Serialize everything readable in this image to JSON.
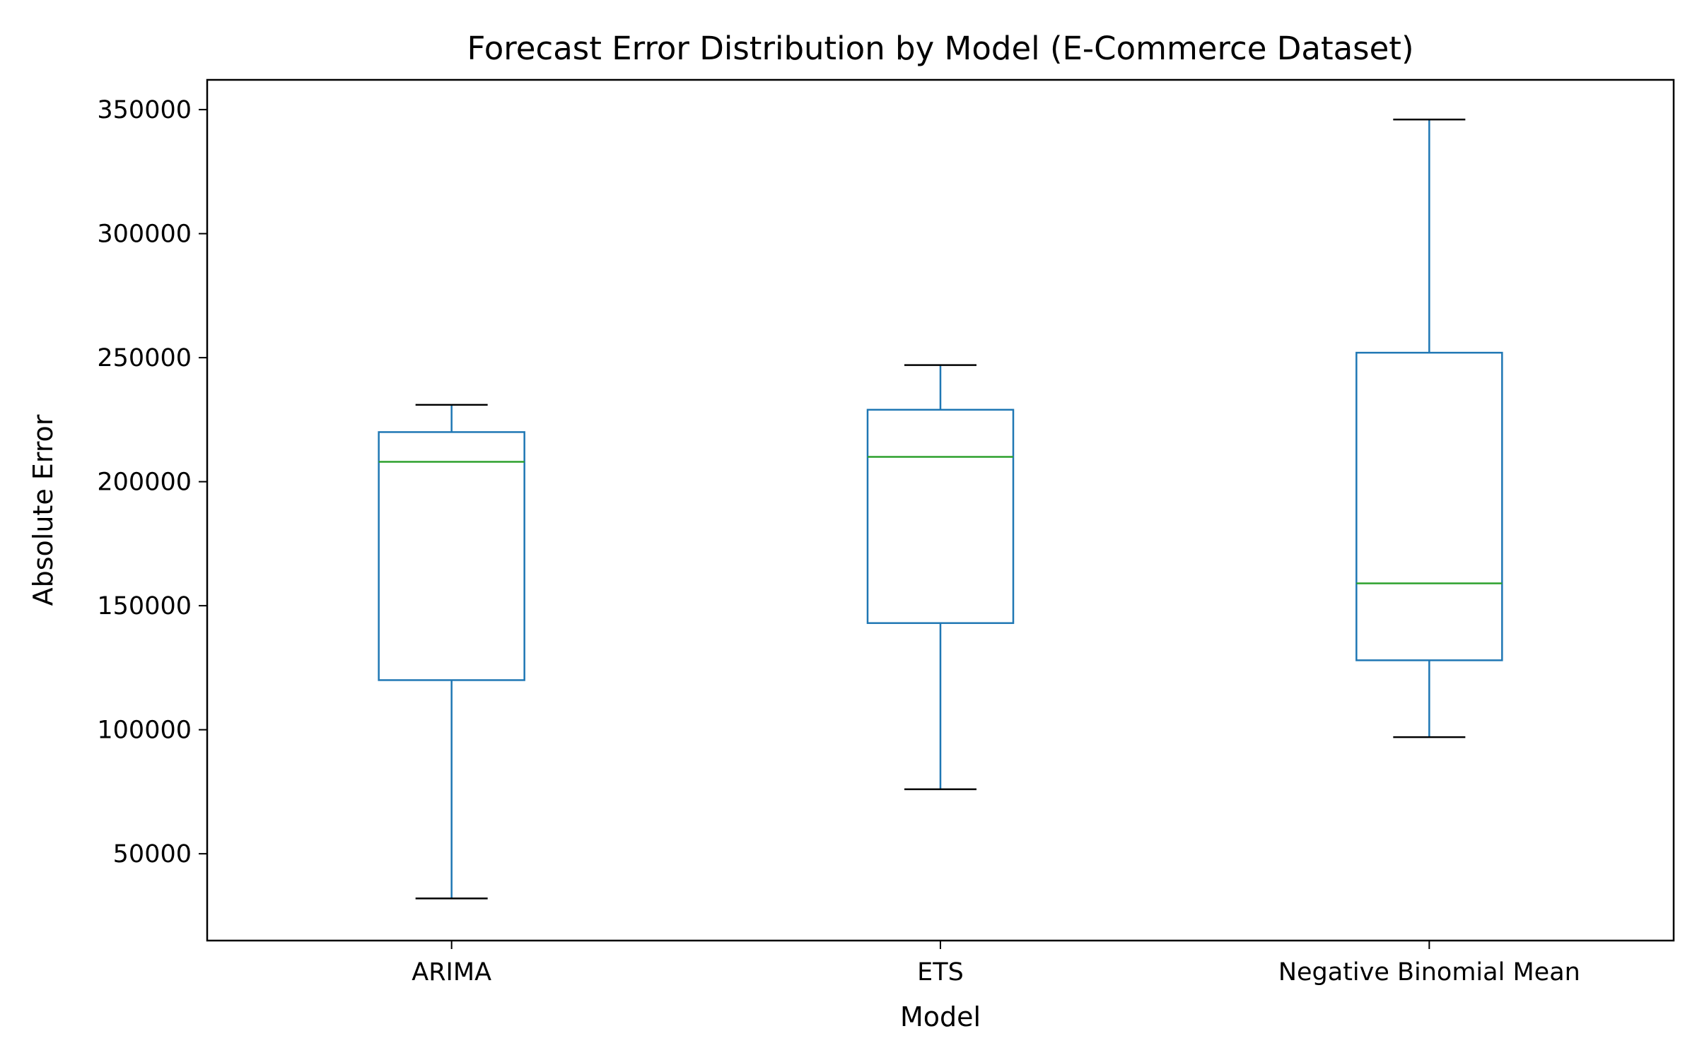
{
  "chart_data": {
    "type": "box",
    "title": "Forecast Error Distribution by Model (E-Commerce Dataset)",
    "xlabel": "Model",
    "ylabel": "Absolute Error",
    "ylim": [
      15000,
      362000
    ],
    "yticks": [
      50000,
      100000,
      150000,
      200000,
      250000,
      300000,
      350000
    ],
    "ytick_labels": [
      "50000",
      "100000",
      "150000",
      "200000",
      "250000",
      "300000",
      "350000"
    ],
    "grid": false,
    "categories": [
      "ARIMA",
      "ETS",
      "Negative Binomial Mean"
    ],
    "boxes": [
      {
        "name": "ARIMA",
        "whisker_low": 32000,
        "q1": 120000,
        "median": 208000,
        "q3": 220000,
        "whisker_high": 231000
      },
      {
        "name": "ETS",
        "whisker_low": 76000,
        "q1": 143000,
        "median": 210000,
        "q3": 229000,
        "whisker_high": 247000
      },
      {
        "name": "Negative Binomial Mean",
        "whisker_low": 97000,
        "q1": 128000,
        "median": 159000,
        "q3": 252000,
        "whisker_high": 346000
      }
    ],
    "colors": {
      "box": "#1f77b4",
      "median": "#2ca02c",
      "caps": "#000000",
      "axes": "#000000"
    }
  }
}
